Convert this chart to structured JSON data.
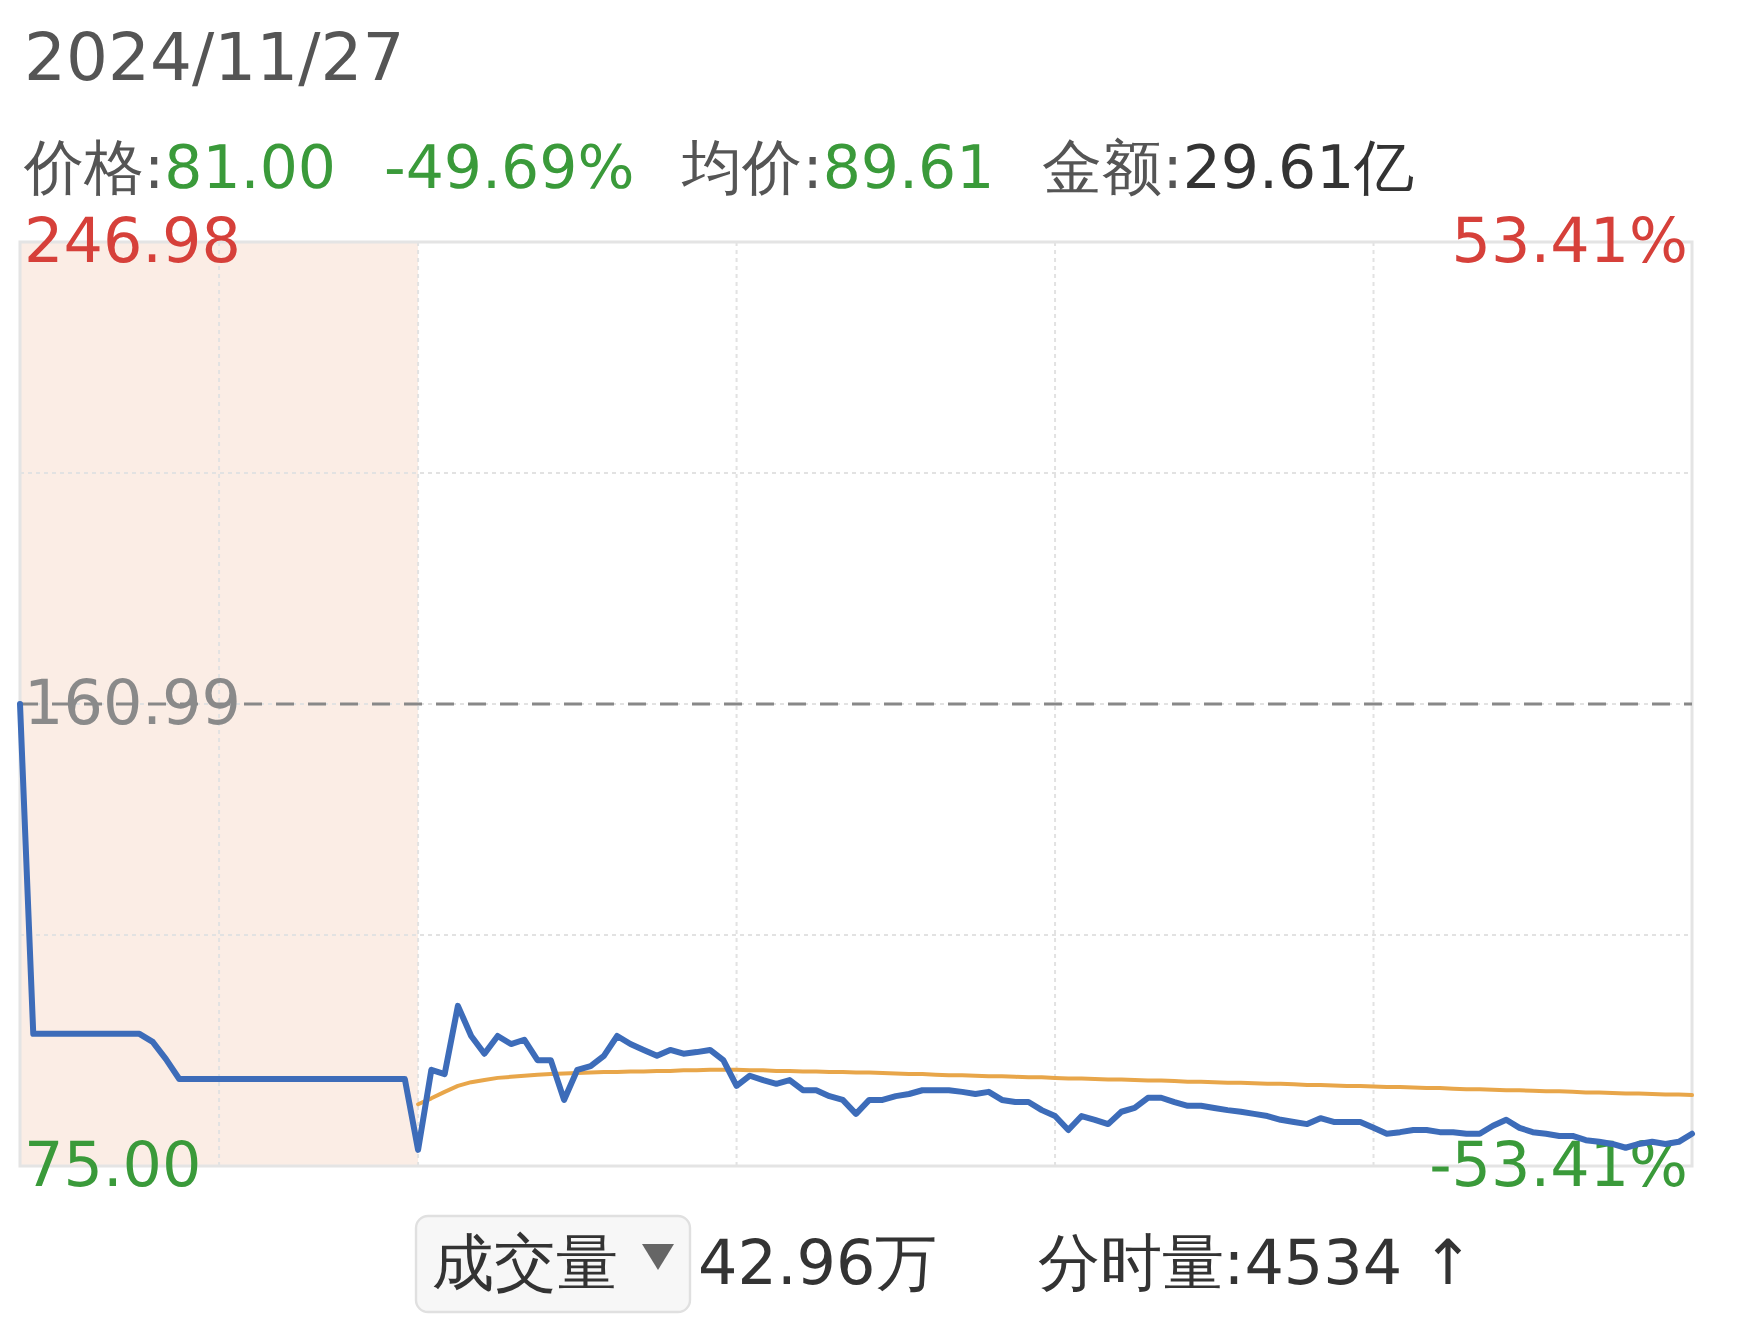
{
  "chart_data": {
    "type": "line",
    "title": "2024/11/27",
    "annotations": [
      "价格:81.00",
      "-49.69%",
      "均价:89.61",
      "金额:29.61亿",
      "成交量",
      "42.96万",
      "分时量:4534 ↑"
    ],
    "categories": [
      null,
      null,
      null,
      null,
      null,
      null,
      null,
      null,
      null,
      null,
      null,
      null,
      null,
      null,
      null,
      null,
      null,
      null,
      null,
      null,
      null,
      null,
      null,
      null,
      null,
      null,
      null,
      null,
      null,
      null,
      null,
      null,
      null,
      null,
      null,
      null,
      null,
      null,
      null,
      null,
      null,
      null,
      null,
      null,
      null,
      null,
      null,
      null,
      null,
      null,
      null,
      null,
      null,
      null,
      null,
      null,
      null,
      null,
      null,
      null,
      null,
      null,
      null,
      null,
      null,
      null,
      null,
      null,
      null,
      null,
      null,
      null,
      null,
      null,
      null,
      null,
      null,
      null,
      null,
      null,
      null,
      null,
      null,
      null,
      null,
      null,
      null,
      null,
      null,
      null,
      null,
      null,
      null,
      null,
      null,
      null,
      null,
      null,
      null,
      null,
      null,
      null,
      null,
      null,
      null,
      null,
      null,
      null,
      null,
      null,
      null,
      null,
      null,
      null,
      null,
      null,
      null,
      null,
      null,
      null,
      null,
      null,
      null,
      null,
      null,
      null,
      null
    ],
    "series": [
      {
        "color": "#3d6cb9",
        "values": [
          161.0,
          99.6,
          99.6,
          99.6,
          99.6,
          99.6,
          99.6,
          99.6,
          99.6,
          99.6,
          98.1,
          94.9,
          91.2,
          91.2,
          91.2,
          91.2,
          91.2,
          91.2,
          91.2,
          91.2,
          91.2,
          91.2,
          91.2,
          91.2,
          91.2,
          91.2,
          91.2,
          91.2,
          91.2,
          91.2,
          78.0,
          92.9,
          92.1,
          104.8,
          99.2,
          95.9,
          99.2,
          97.7,
          98.5,
          94.7,
          94.7,
          87.3,
          92.9,
          93.6,
          95.5,
          99.2,
          97.7,
          96.6,
          95.5,
          96.6,
          95.9,
          96.2,
          96.6,
          94.7,
          89.9,
          91.8,
          91.0,
          90.3,
          91.0,
          89.1,
          89.1,
          88.0,
          87.3,
          84.7,
          87.3,
          87.3,
          88.0,
          88.4,
          89.1,
          89.1,
          89.1,
          88.8,
          88.4,
          88.8,
          87.3,
          86.9,
          86.9,
          85.4,
          84.3,
          81.7,
          84.3,
          83.6,
          82.8,
          85.1,
          85.8,
          87.7,
          87.7,
          86.9,
          86.2,
          86.2,
          85.8,
          85.4,
          85.1,
          84.7,
          84.3,
          83.6,
          83.2,
          82.8,
          83.9,
          83.2,
          83.2,
          83.2,
          82.1,
          81.0,
          81.3,
          81.7,
          81.7,
          81.3,
          81.3,
          81.0,
          81.0,
          82.5,
          83.6,
          82.1,
          81.3,
          81.0,
          80.6,
          80.6,
          79.8,
          79.5,
          79.1,
          78.4,
          79.1,
          79.5,
          79.1,
          79.5,
          81.0
        ]
      },
      {
        "color": "#e8a64a",
        "values": [
          null,
          null,
          null,
          null,
          null,
          null,
          null,
          null,
          null,
          null,
          null,
          null,
          null,
          null,
          null,
          null,
          null,
          null,
          null,
          null,
          null,
          null,
          null,
          null,
          null,
          null,
          null,
          null,
          null,
          null,
          86.5,
          87.6,
          88.8,
          89.9,
          90.6,
          91.0,
          91.4,
          91.6,
          91.8,
          92.0,
          92.1,
          92.2,
          92.3,
          92.4,
          92.5,
          92.5,
          92.6,
          92.6,
          92.7,
          92.7,
          92.8,
          92.8,
          92.9,
          92.9,
          92.9,
          92.8,
          92.8,
          92.7,
          92.7,
          92.6,
          92.6,
          92.5,
          92.5,
          92.4,
          92.4,
          92.3,
          92.2,
          92.1,
          92.1,
          92.0,
          91.9,
          91.9,
          91.8,
          91.7,
          91.7,
          91.6,
          91.5,
          91.5,
          91.4,
          91.3,
          91.3,
          91.2,
          91.1,
          91.1,
          91.0,
          90.9,
          90.9,
          90.8,
          90.7,
          90.7,
          90.6,
          90.5,
          90.5,
          90.4,
          90.3,
          90.3,
          90.2,
          90.1,
          90.1,
          90.0,
          89.9,
          89.9,
          89.8,
          89.7,
          89.7,
          89.6,
          89.5,
          89.5,
          89.4,
          89.3,
          89.3,
          89.2,
          89.1,
          89.1,
          89.0,
          88.9,
          88.9,
          88.8,
          88.7,
          88.7,
          88.6,
          88.5,
          88.5,
          88.4,
          88.3,
          88.3,
          88.2
        ]
      }
    ],
    "ylim": [
      75,
      246.98
    ],
    "yticks": [
      {
        "value": 75,
        "label": "75.00"
      },
      {
        "value": 117.995,
        "label": null
      },
      {
        "value": 160.99,
        "label": "160.99"
      },
      {
        "value": 203.985,
        "label": null
      },
      {
        "value": 246.98,
        "label": "246.98"
      }
    ],
    "y2lim": [
      -53.41,
      53.41
    ],
    "y2ticks": [
      {
        "value": -53.41,
        "label": "-53.41%"
      },
      {
        "value": 53.41,
        "label": "53.41%"
      }
    ],
    "ref_lines": [
      {
        "axis": "y",
        "value": 160.99,
        "color": "#888888",
        "line_style": "dashed"
      }
    ],
    "grid": true,
    "tick_labels": "y"
  }
}
